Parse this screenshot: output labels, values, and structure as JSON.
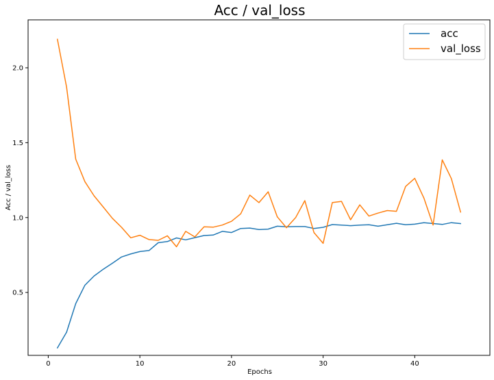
{
  "chart_data": {
    "type": "line",
    "title": "Acc / val_loss",
    "xlabel": "Epochs",
    "ylabel": "Acc / val_loss",
    "xlim": [
      -2.2,
      48.2
    ],
    "ylim": [
      0.08,
      2.32
    ],
    "xticks": [
      0,
      10,
      20,
      30,
      40
    ],
    "yticks": [
      0.5,
      1.0,
      1.5,
      2.0
    ],
    "ytick_labels": [
      "0.5",
      "1.0",
      "1.5",
      "2.0"
    ],
    "grid": false,
    "legend": "top-right",
    "x": [
      1,
      2,
      3,
      4,
      5,
      6,
      7,
      8,
      9,
      10,
      11,
      12,
      13,
      14,
      15,
      16,
      17,
      18,
      19,
      20,
      21,
      22,
      23,
      24,
      25,
      26,
      27,
      28,
      29,
      30,
      31,
      32,
      33,
      34,
      35,
      36,
      37,
      38,
      39,
      40,
      41,
      42,
      43,
      44,
      45
    ],
    "series": [
      {
        "name": "acc",
        "color": "#1f77b4",
        "values": [
          0.13,
          0.235,
          0.425,
          0.548,
          0.61,
          0.655,
          0.695,
          0.737,
          0.757,
          0.773,
          0.78,
          0.832,
          0.84,
          0.864,
          0.851,
          0.866,
          0.88,
          0.883,
          0.908,
          0.9,
          0.927,
          0.93,
          0.92,
          0.923,
          0.942,
          0.938,
          0.94,
          0.94,
          0.927,
          0.935,
          0.953,
          0.95,
          0.946,
          0.95,
          0.952,
          0.942,
          0.952,
          0.962,
          0.952,
          0.956,
          0.966,
          0.96,
          0.954,
          0.966,
          0.96
        ]
      },
      {
        "name": "val_loss",
        "color": "#ff7f0e",
        "values": [
          2.19,
          1.87,
          1.39,
          1.24,
          1.145,
          1.07,
          0.995,
          0.935,
          0.865,
          0.882,
          0.853,
          0.848,
          0.878,
          0.805,
          0.908,
          0.871,
          0.938,
          0.936,
          0.95,
          0.975,
          1.025,
          1.15,
          1.1,
          1.172,
          1.005,
          0.932,
          1.0,
          1.113,
          0.9,
          0.828,
          1.1,
          1.108,
          0.985,
          1.085,
          1.01,
          1.03,
          1.047,
          1.042,
          1.208,
          1.262,
          1.13,
          0.95,
          1.385,
          1.26,
          1.037
        ]
      }
    ]
  }
}
